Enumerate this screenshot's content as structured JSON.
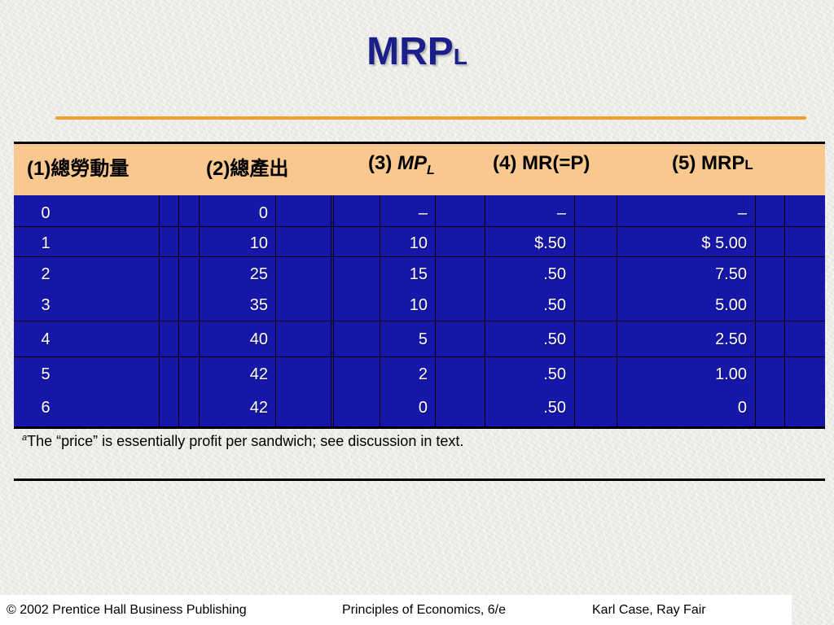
{
  "slide": {
    "title_main": "MRP",
    "title_sub": "L"
  },
  "table": {
    "headers": {
      "col1": "(1)總勞動量",
      "col2": "(2)總產出",
      "col3_prefix": "(3) ",
      "col3_main": "MP",
      "col3_sub": "L",
      "col4": "(4) MR(=P)",
      "col5_main": "(5) MRP",
      "col5_sub": "L"
    },
    "rows": [
      {
        "labor": "0",
        "output": "0",
        "mp": "–",
        "mr": "–",
        "mrp": "–"
      },
      {
        "labor": "1",
        "output": "10",
        "mp": "10",
        "mr": "$.50",
        "mrp": "$ 5.00"
      },
      {
        "labor": "2",
        "output": "25",
        "mp": "15",
        "mr": ".50",
        "mrp": "7.50"
      },
      {
        "labor": "3",
        "output": "35",
        "mp": "10",
        "mr": ".50",
        "mrp": "5.00"
      },
      {
        "labor": "4",
        "output": "40",
        "mp": "5",
        "mr": ".50",
        "mrp": "2.50"
      },
      {
        "labor": "5",
        "output": "42",
        "mp": "2",
        "mr": ".50",
        "mrp": "1.00"
      },
      {
        "labor": "6",
        "output": "42",
        "mp": "0",
        "mr": ".50",
        "mrp": "0"
      }
    ]
  },
  "footnote": {
    "marker": "a",
    "text": "The “price” is essentially profit per sandwich; see discussion in text."
  },
  "footer": {
    "copyright": "© 2002 Prentice Hall Business Publishing",
    "book": "Principles of Economics, 6/e",
    "authors": "Karl Case, Ray Fair"
  },
  "colors": {
    "title": "#1b1f8a",
    "accent_rule": "#f2a02a",
    "header_bg": "#f9c88e",
    "table_bg": "#1616a8"
  }
}
